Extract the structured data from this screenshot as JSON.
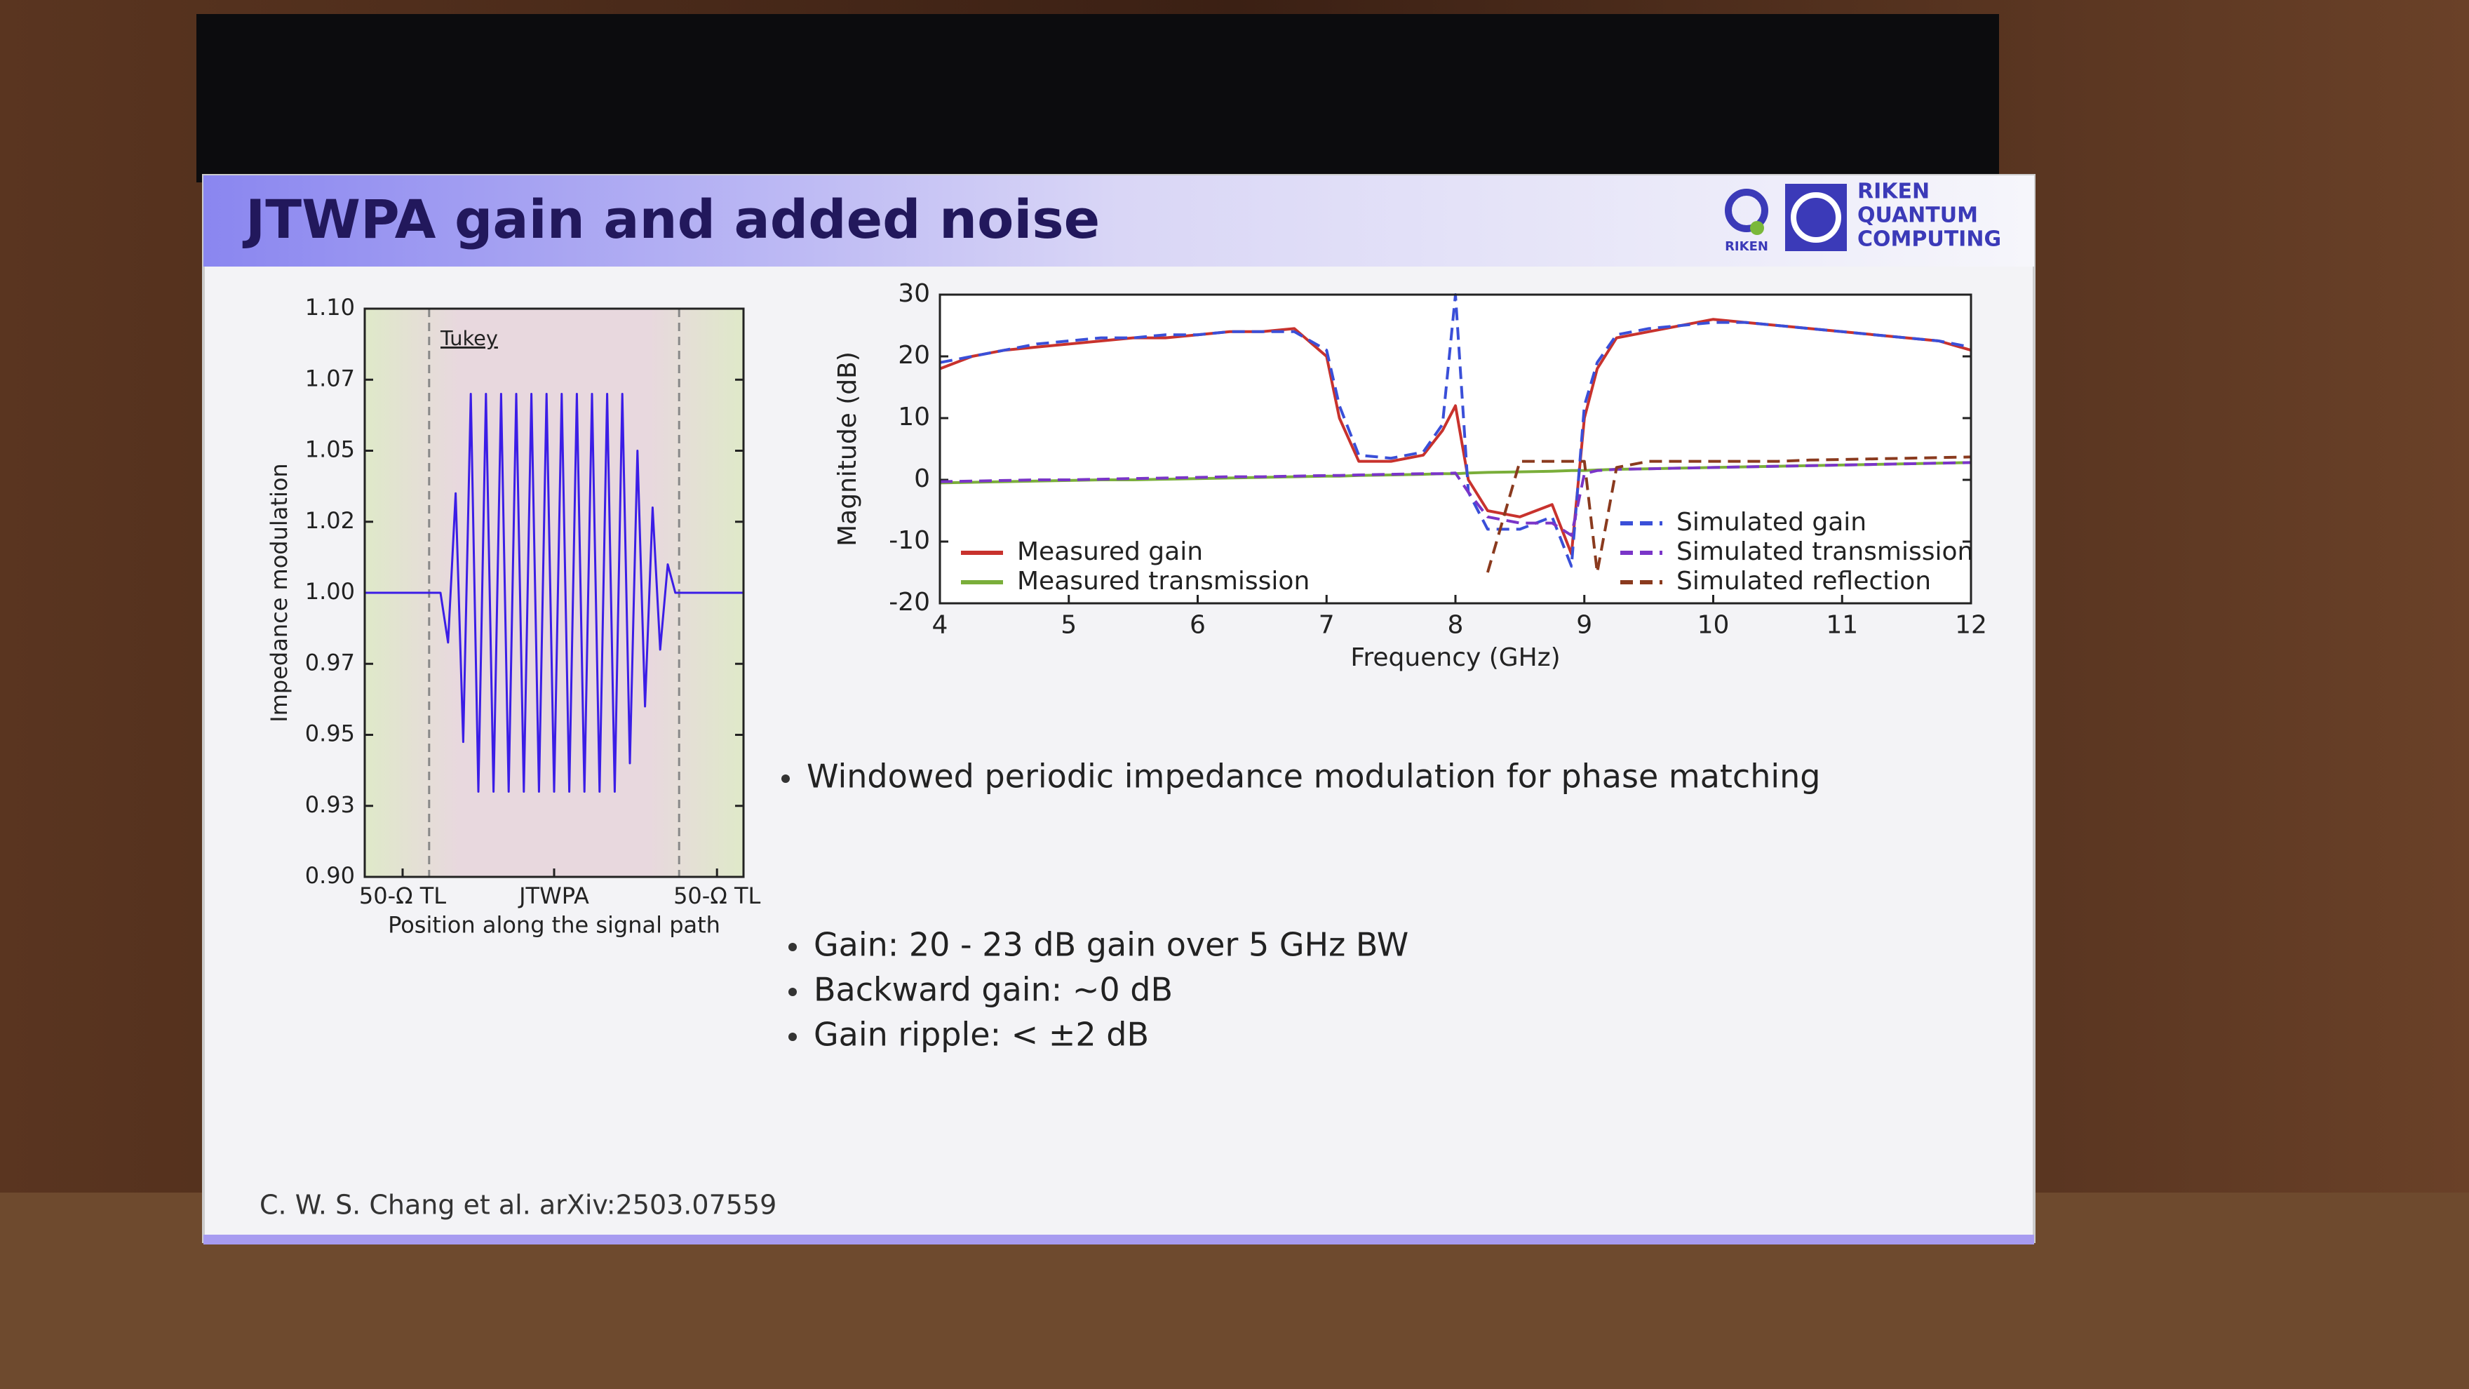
{
  "slide": {
    "title": "JTWPA gain and added noise",
    "logo_small": "RIKEN",
    "logo_lines": [
      "RIKEN",
      "QUANTUM",
      "COMPUTING"
    ],
    "bullets_top": [
      "Windowed periodic impedance modulation for phase matching"
    ],
    "bullets_bottom": [
      "Gain: 20 - 23 dB gain over 5 GHz BW",
      "Backward gain: ~0 dB",
      "Gain ripple: < ±2 dB"
    ],
    "citation": "C. W. S. Chang et al. arXiv:2503.07559"
  },
  "chart_data": [
    {
      "type": "line",
      "annotation": "Tukey",
      "xlabel": "Position along the signal path",
      "ylabel": "Impedance modulation",
      "color": "#3b1de6",
      "xlim": [
        0,
        1
      ],
      "xticks": [
        {
          "value": 0.1,
          "label": "50-Ω TL"
        },
        {
          "value": 0.5,
          "label": "JTWPA"
        },
        {
          "value": 0.93,
          "label": "50-Ω TL"
        }
      ],
      "ylim": [
        0.9,
        1.1
      ],
      "yticks": [
        {
          "value": 0.9,
          "label": "0.90"
        },
        {
          "value": 0.925,
          "label": "0.93"
        },
        {
          "value": 0.95,
          "label": "0.95"
        },
        {
          "value": 0.975,
          "label": "0.97"
        },
        {
          "value": 1,
          "label": "1.00"
        },
        {
          "value": 1.025,
          "label": "1.02"
        },
        {
          "value": 1.05,
          "label": "1.05"
        },
        {
          "value": 1.075,
          "label": "1.07"
        },
        {
          "value": 1.1,
          "label": "1.10"
        }
      ],
      "x": [
        0,
        0.2,
        0.22,
        0.24,
        0.26,
        0.28,
        0.3,
        0.32,
        0.34,
        0.36,
        0.38,
        0.4,
        0.42,
        0.44,
        0.46,
        0.48,
        0.5,
        0.52,
        0.54,
        0.56,
        0.58,
        0.6,
        0.62,
        0.64,
        0.66,
        0.68,
        0.7,
        0.72,
        0.74,
        0.76,
        0.78,
        0.8,
        0.82,
        1
      ],
      "values": [
        1,
        1,
        0.9825,
        1.035,
        0.9475,
        1.07,
        0.93,
        1.07,
        0.93,
        1.07,
        0.93,
        1.07,
        0.93,
        1.07,
        0.93,
        1.07,
        0.93,
        1.07,
        0.93,
        1.07,
        0.93,
        1.07,
        0.93,
        1.07,
        0.93,
        1.07,
        0.94,
        1.05,
        0.96,
        1.03,
        0.98,
        1.01,
        1,
        1
      ]
    },
    {
      "type": "line",
      "xlabel": "Frequency (GHz)",
      "ylabel": "Magnitude (dB)",
      "xlim": [
        4,
        12
      ],
      "xticks": [
        4,
        5,
        6,
        7,
        8,
        9,
        10,
        11,
        12
      ],
      "ylim": [
        -20,
        30
      ],
      "yticks": [
        -20,
        -10,
        0,
        10,
        20,
        30
      ],
      "x": [
        4,
        4.25,
        4.5,
        4.75,
        5,
        5.25,
        5.5,
        5.75,
        6,
        6.25,
        6.5,
        6.75,
        7,
        7.1,
        7.25,
        7.5,
        7.75,
        7.9,
        8,
        8.1,
        8.25,
        8.5,
        8.75,
        8.9,
        9,
        9.1,
        9.25,
        9.5,
        9.75,
        10,
        10.25,
        10.5,
        10.75,
        11,
        11.25,
        11.5,
        11.75,
        12
      ],
      "series": [
        {
          "name": "Measured gain",
          "color": "#c8322d",
          "dash": false,
          "legend": "lower left",
          "values": [
            18,
            20,
            21,
            21.5,
            22,
            22.5,
            23,
            23,
            23.5,
            24,
            24,
            24.5,
            20,
            10,
            3,
            3,
            4,
            8,
            12,
            0,
            -5,
            -6,
            -4,
            -12,
            10,
            18,
            23,
            24,
            25,
            26,
            25.5,
            25,
            24.5,
            24,
            23.5,
            23,
            22.5,
            21
          ]
        },
        {
          "name": "Measured transmission",
          "color": "#7aae3a",
          "dash": false,
          "legend": "lower left",
          "values": [
            -0.5,
            -0.4,
            -0.3,
            -0.2,
            -0.1,
            0,
            0,
            0.1,
            0.2,
            0.3,
            0.4,
            0.5,
            0.6,
            0.6,
            0.7,
            0.8,
            0.9,
            1,
            1,
            1.1,
            1.2,
            1.3,
            1.4,
            1.5,
            1.5,
            1.6,
            1.7,
            1.8,
            1.9,
            2,
            2.1,
            2.2,
            2.3,
            2.4,
            2.5,
            2.6,
            2.7,
            2.8
          ]
        },
        {
          "name": "Simulated gain",
          "color": "#3a4fd8",
          "dash": true,
          "legend": "lower right",
          "values": [
            19,
            20,
            21,
            22,
            22.5,
            23,
            23,
            23.5,
            23.5,
            24,
            24,
            24,
            21,
            12,
            4,
            3.5,
            4.5,
            9,
            30,
            -2,
            -8,
            -8,
            -6,
            -14,
            12,
            19,
            23.5,
            24.5,
            25,
            25.5,
            25.5,
            25,
            24.5,
            24,
            23.5,
            23,
            22.5,
            21.5
          ]
        },
        {
          "name": "Simulated transmission",
          "color": "#7a35c8",
          "dash": true,
          "legend": "lower right",
          "values": [
            -0.3,
            -0.2,
            -0.1,
            0,
            0,
            0.1,
            0.2,
            0.3,
            0.4,
            0.5,
            0.5,
            0.6,
            0.7,
            0.7,
            0.8,
            0.9,
            1,
            1,
            1.1,
            -2,
            -6,
            -7,
            -7,
            -9,
            1,
            1.5,
            1.7,
            1.8,
            1.9,
            2,
            2.1,
            2.2,
            2.3,
            2.4,
            2.5,
            2.6,
            2.7,
            2.8
          ]
        },
        {
          "name": "Simulated reflection",
          "color": "#8a3a1e",
          "dash": true,
          "legend": "lower right",
          "values": [
            null,
            null,
            null,
            null,
            null,
            null,
            null,
            null,
            null,
            null,
            null,
            null,
            null,
            null,
            null,
            null,
            null,
            null,
            null,
            null,
            -15,
            3,
            3,
            3,
            3,
            -15,
            2,
            3,
            3,
            3,
            3,
            3,
            3.2,
            3.3,
            3.4,
            3.5,
            3.6,
            3.7
          ]
        }
      ]
    }
  ]
}
